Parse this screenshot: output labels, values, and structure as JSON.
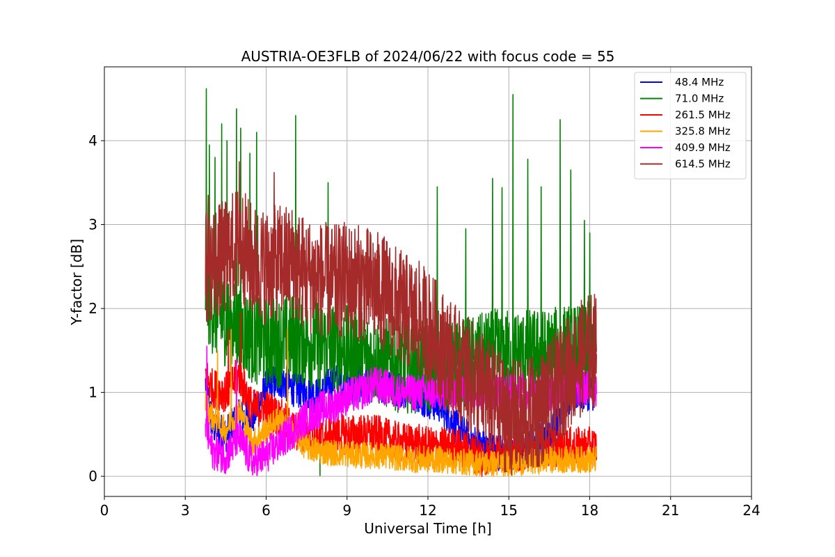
{
  "chart_data": {
    "type": "line",
    "title": "AUSTRIA-OE3FLB of 2024/06/22 with focus code = 55",
    "xlabel": "Universal Time [h]",
    "ylabel": "Y-factor [dB]",
    "xlim": [
      0,
      24
    ],
    "ylim": [
      -0.24,
      4.88
    ],
    "xticks": [
      0,
      3,
      6,
      9,
      12,
      15,
      18,
      21,
      24
    ],
    "xtick_labels": [
      "0",
      "3",
      "6",
      "9",
      "12",
      "15",
      "18",
      "21",
      "24"
    ],
    "yticks": [
      0,
      1,
      2,
      3,
      4
    ],
    "ytick_labels": [
      "0",
      "1",
      "2",
      "3",
      "4"
    ],
    "grid": true,
    "legend_position": "top-right",
    "series": [
      {
        "name": "  48.4 MHz",
        "color": "#0000ff",
        "x": [
          3.75,
          4.0,
          4.5,
          5.0,
          5.5,
          6.0,
          6.5,
          7.0,
          7.5,
          8.0,
          8.5,
          9.0,
          9.5,
          10.0,
          10.5,
          11.0,
          11.5,
          12.0,
          12.5,
          13.0,
          13.5,
          14.0,
          14.5,
          15.0,
          15.5,
          16.0,
          16.5,
          17.0,
          17.5,
          18.0,
          18.25
        ],
        "values": [
          1.1,
          0.6,
          0.5,
          0.7,
          0.7,
          1.05,
          1.15,
          1.05,
          1.0,
          0.95,
          1.15,
          1.05,
          1.1,
          1.1,
          1.05,
          1.05,
          1.0,
          0.9,
          0.85,
          0.6,
          0.45,
          0.35,
          0.3,
          0.25,
          0.3,
          0.4,
          0.5,
          0.85,
          1.0,
          1.0,
          1.0
        ],
        "noise": 0.22,
        "spikes": []
      },
      {
        "name": "  71.0 MHz",
        "color": "#008000",
        "x": [
          3.75,
          4.0,
          4.5,
          5.0,
          5.5,
          6.0,
          6.5,
          7.0,
          7.5,
          8.0,
          8.5,
          9.0,
          9.5,
          10.0,
          10.5,
          11.0,
          11.5,
          12.0,
          12.5,
          13.0,
          13.5,
          14.0,
          14.5,
          15.0,
          15.5,
          16.0,
          16.5,
          17.0,
          17.5,
          18.0,
          18.25
        ],
        "values": [
          2.2,
          2.0,
          1.85,
          1.75,
          1.65,
          1.6,
          1.6,
          1.65,
          1.6,
          1.6,
          1.55,
          1.5,
          1.45,
          1.4,
          1.35,
          1.3,
          1.3,
          1.3,
          1.3,
          1.3,
          1.35,
          1.4,
          1.45,
          1.45,
          1.45,
          1.45,
          1.45,
          1.5,
          1.5,
          1.5,
          1.5
        ],
        "noise": 0.55,
        "spikes": [
          [
            3.78,
            4.62
          ],
          [
            3.9,
            3.95
          ],
          [
            4.1,
            3.8
          ],
          [
            4.35,
            4.2
          ],
          [
            4.55,
            4.0
          ],
          [
            4.9,
            4.38
          ],
          [
            5.05,
            4.15
          ],
          [
            5.4,
            3.85
          ],
          [
            5.65,
            4.1
          ],
          [
            7.1,
            4.3
          ],
          [
            8.0,
            0.01
          ],
          [
            8.3,
            3.5
          ],
          [
            12.35,
            3.45
          ],
          [
            13.4,
            2.95
          ],
          [
            14.4,
            3.55
          ],
          [
            14.75,
            3.44
          ],
          [
            15.15,
            4.55
          ],
          [
            15.7,
            3.78
          ],
          [
            16.2,
            3.45
          ],
          [
            16.9,
            4.25
          ],
          [
            17.3,
            3.65
          ],
          [
            17.8,
            3.05
          ],
          [
            18.0,
            2.9
          ]
        ]
      },
      {
        "name": "261.5 MHz",
        "color": "#ff0000",
        "x": [
          3.75,
          4.0,
          4.5,
          5.0,
          5.5,
          6.0,
          6.5,
          7.0,
          7.5,
          8.0,
          8.5,
          9.0,
          9.5,
          10.0,
          10.5,
          11.0,
          11.5,
          12.0,
          12.5,
          13.0,
          13.5,
          14.0,
          14.5,
          15.0,
          15.5,
          16.0,
          16.5,
          17.0,
          17.5,
          18.0,
          18.25
        ],
        "values": [
          1.2,
          1.05,
          1.0,
          1.2,
          0.8,
          0.8,
          0.7,
          0.55,
          0.5,
          0.45,
          0.5,
          0.5,
          0.5,
          0.5,
          0.45,
          0.4,
          0.4,
          0.35,
          0.35,
          0.35,
          0.3,
          0.25,
          0.25,
          0.3,
          0.3,
          0.35,
          0.35,
          0.35,
          0.35,
          0.35,
          0.35
        ],
        "noise": 0.24,
        "spikes": [
          [
            5.05,
            1.95
          ],
          [
            4.6,
            1.75
          ],
          [
            14.0,
            0.0
          ]
        ]
      },
      {
        "name": "325.8 MHz",
        "color": "#ffa500",
        "x": [
          3.75,
          4.0,
          4.5,
          5.0,
          5.5,
          6.0,
          6.5,
          7.0,
          7.5,
          8.0,
          8.5,
          9.0,
          9.5,
          10.0,
          10.5,
          11.0,
          11.5,
          12.0,
          12.5,
          13.0,
          13.5,
          14.0,
          14.5,
          15.0,
          15.5,
          16.0,
          16.5,
          17.0,
          17.5,
          18.0,
          18.25
        ],
        "values": [
          0.9,
          0.7,
          0.55,
          0.8,
          0.4,
          0.55,
          0.7,
          0.5,
          0.35,
          0.3,
          0.28,
          0.27,
          0.25,
          0.25,
          0.24,
          0.22,
          0.2,
          0.2,
          0.2,
          0.18,
          0.17,
          0.16,
          0.15,
          0.16,
          0.17,
          0.18,
          0.2,
          0.2,
          0.2,
          0.2,
          0.2
        ],
        "noise": 0.16,
        "spikes": [
          [
            4.7,
            1.75
          ],
          [
            6.8,
            1.75
          ],
          [
            4.2,
            1.5
          ]
        ]
      },
      {
        "name": "409.9 MHz",
        "color": "#ff00ff",
        "x": [
          3.75,
          4.0,
          4.5,
          5.0,
          5.5,
          6.0,
          6.5,
          7.0,
          7.5,
          8.0,
          8.5,
          9.0,
          9.5,
          10.0,
          10.5,
          11.0,
          11.5,
          12.0,
          12.5,
          13.0,
          13.5,
          14.0,
          14.5,
          15.0,
          15.5,
          16.0,
          16.5,
          17.0,
          17.5,
          18.0,
          18.25
        ],
        "values": [
          0.6,
          0.3,
          0.25,
          0.45,
          0.15,
          0.25,
          0.4,
          0.55,
          0.7,
          0.8,
          0.85,
          0.95,
          1.0,
          1.1,
          1.05,
          1.0,
          1.0,
          1.0,
          1.0,
          1.0,
          1.0,
          1.0,
          1.0,
          1.0,
          1.0,
          1.0,
          1.0,
          1.05,
          1.05,
          1.05,
          1.05
        ],
        "noise": 0.22,
        "spikes": [
          [
            3.8,
            1.55
          ],
          [
            4.9,
            1.4
          ]
        ]
      },
      {
        "name": "614.5 MHz",
        "color": "#a52a2a",
        "x": [
          3.75,
          4.0,
          4.5,
          5.0,
          5.5,
          6.0,
          6.5,
          7.0,
          7.5,
          8.0,
          8.5,
          9.0,
          9.5,
          10.0,
          10.5,
          11.0,
          11.5,
          12.0,
          12.5,
          13.0,
          13.5,
          14.0,
          14.5,
          15.0,
          15.5,
          16.0,
          16.5,
          17.0,
          17.5,
          18.0,
          18.25
        ],
        "values": [
          2.45,
          2.55,
          2.6,
          2.8,
          2.55,
          2.5,
          2.55,
          2.55,
          2.4,
          2.35,
          2.3,
          2.35,
          2.3,
          2.25,
          2.15,
          2.0,
          1.9,
          1.8,
          1.55,
          1.35,
          1.2,
          1.05,
          0.85,
          0.7,
          0.7,
          0.75,
          0.9,
          1.15,
          1.35,
          1.5,
          1.5
        ],
        "noise": 0.7,
        "spikes": [
          [
            5.0,
            3.75
          ],
          [
            6.3,
            3.62
          ],
          [
            3.85,
            3.35
          ]
        ]
      }
    ]
  }
}
